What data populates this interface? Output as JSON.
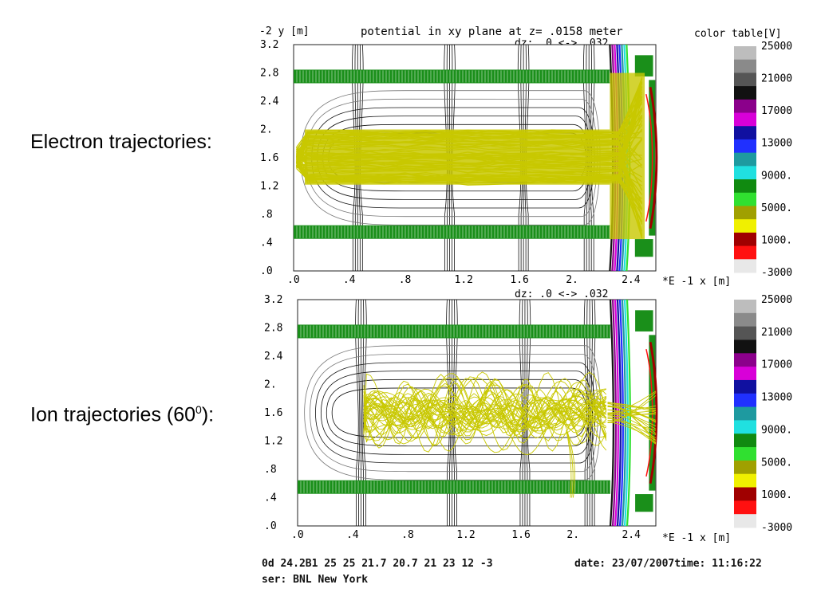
{
  "labels": {
    "electron": "Electron trajectories:",
    "ion_prefix": "Ion trajectories (60",
    "ion_sup": "0",
    "ion_suffix": "):"
  },
  "colors": {
    "trajectory": "#c8c800",
    "electrode": "#1a8f1a",
    "contour": "#111111"
  },
  "chart_data": [
    {
      "type": "heatmap",
      "title": "potential in xy plane  at z= .0158  meter",
      "sub_label": "dz:   .0     <-> .032",
      "ylabel": "-2  y [m]",
      "xlabel": "*E -1  x [m]",
      "x_ticks": [
        ".0",
        ".4",
        ".8",
        "1.2",
        "1.6",
        "2.",
        "2.4"
      ],
      "y_ticks": [
        "3.2",
        "2.8",
        "2.4",
        "2.",
        "1.6",
        "1.2",
        ".8",
        ".4",
        ".0"
      ],
      "xlim": [
        0,
        2.6
      ],
      "ylim": [
        0,
        3.2
      ],
      "trajectories": "electron",
      "colorbar": {
        "title": "color table[V]",
        "ticks": [
          "25000",
          "21000",
          "17000",
          "13000",
          "9000.",
          "5000.",
          "1000.",
          "-3000"
        ],
        "colors": [
          "#bdbdbd",
          "#8a8a8a",
          "#555555",
          "#111111",
          "#8b008b",
          "#d800d8",
          "#1010a0",
          "#2030ff",
          "#1e9aa0",
          "#20e0e0",
          "#108a10",
          "#30e030",
          "#a0a000",
          "#f0f000",
          "#a00000",
          "#ff1010",
          "#e8e8e8"
        ]
      }
    },
    {
      "type": "heatmap",
      "sub_label": "dz:   .0     <-> .032",
      "xlabel": "*E -1  x [m]",
      "x_ticks": [
        ".0",
        ".4",
        ".8",
        "1.2",
        "1.6",
        "2.",
        "2.4"
      ],
      "y_ticks": [
        "3.2",
        "2.8",
        "2.4",
        "2.",
        "1.6",
        "1.2",
        ".8",
        ".4",
        ".0"
      ],
      "xlim": [
        0,
        2.6
      ],
      "ylim": [
        0,
        3.2
      ],
      "trajectories": "ion",
      "colorbar": {
        "ticks": [
          "25000",
          "21000",
          "17000",
          "13000",
          "9000.",
          "5000.",
          "1000.",
          "-3000"
        ],
        "colors": [
          "#bdbdbd",
          "#8a8a8a",
          "#555555",
          "#111111",
          "#8b008b",
          "#d800d8",
          "#1010a0",
          "#2030ff",
          "#1e9aa0",
          "#20e0e0",
          "#108a10",
          "#30e030",
          "#a0a000",
          "#f0f000",
          "#a00000",
          "#ff1010",
          "#e8e8e8"
        ]
      }
    }
  ],
  "footer": {
    "params": "0d 24.2B1 25 25 21.7 20.7 21 23 12 -3",
    "date": "date: 23/07/2007time: 11:16:22",
    "user": "ser: BNL New York"
  }
}
